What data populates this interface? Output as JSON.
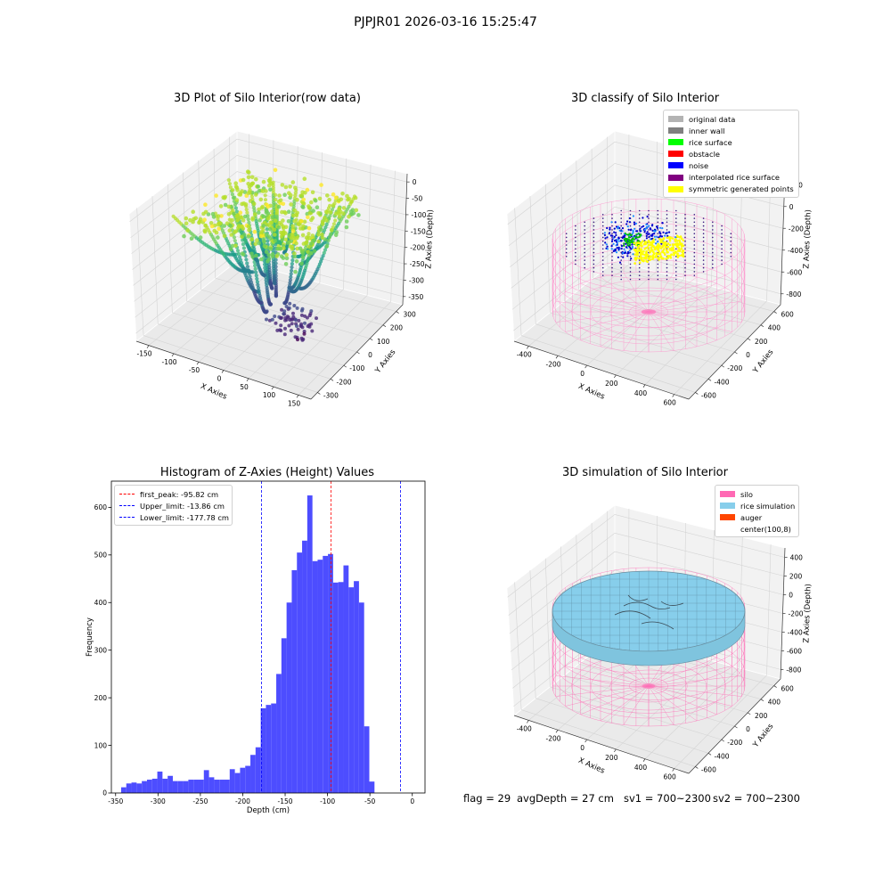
{
  "figure": {
    "suptitle": "PJPJR01 2026-03-16 15:25:47"
  },
  "panels": {
    "raw": {
      "title": "3D Plot of Silo Interior(row data)",
      "xlabel": "X Axies",
      "ylabel": "Y Axies",
      "zlabel": "Z Axies (Depth)",
      "xticks": [
        "-150",
        "-100",
        "-50",
        "0",
        "50",
        "100",
        "150"
      ],
      "yticks": [
        "-300",
        "-200",
        "-100",
        "0",
        "100",
        "200",
        "300"
      ],
      "zticks": [
        "0",
        "-50",
        "-100",
        "-150",
        "-200",
        "-250",
        "-300",
        "-350"
      ],
      "colormap": "viridis"
    },
    "classify": {
      "title": "3D classify of Silo Interior",
      "xlabel": "X Axies",
      "ylabel": "Y Axies",
      "zlabel": "Z Axies (Depth)",
      "xticks": [
        "-400",
        "-200",
        "0",
        "200",
        "400",
        "600"
      ],
      "yticks": [
        "-600",
        "-400",
        "-200",
        "0",
        "200",
        "400",
        "600"
      ],
      "zticks": [
        "200",
        "0",
        "-200",
        "-400",
        "-600",
        "-800"
      ],
      "legend": [
        {
          "label": "original data",
          "color": "#b3b3b3"
        },
        {
          "label": "inner wall",
          "color": "#808080"
        },
        {
          "label": "rice surface",
          "color": "#00ff00"
        },
        {
          "label": "obstacle",
          "color": "#ff0000"
        },
        {
          "label": "noise",
          "color": "#0000ff"
        },
        {
          "label": "interpolated rice surface",
          "color": "#800080"
        },
        {
          "label": "symmetric generated points",
          "color": "#ffff00"
        }
      ]
    },
    "simulation": {
      "title": "3D simulation of Silo Interior",
      "xlabel": "X Axies",
      "ylabel": "Y Axies",
      "zlabel": "Z Axies (Depth)",
      "xticks": [
        "-400",
        "-200",
        "0",
        "200",
        "400",
        "600"
      ],
      "yticks": [
        "-600",
        "-400",
        "-200",
        "0",
        "200",
        "400",
        "600"
      ],
      "zticks": [
        "400",
        "200",
        "0",
        "-200",
        "-400",
        "-600",
        "-800"
      ],
      "legend": [
        {
          "label": "silo",
          "color": "#ff69b4"
        },
        {
          "label": "rice simulation",
          "color": "#87ceeb"
        },
        {
          "label": "auger",
          "color": "#ff4500"
        },
        {
          "label": "center(100,8)",
          "color": "#ffffff"
        }
      ]
    }
  },
  "chart_data": {
    "type": "bar",
    "title": "Histogram of Z-Axies (Height) Values",
    "xlabel": "Depth (cm)",
    "ylabel": "Frequency",
    "xlim": [
      -355,
      15
    ],
    "ylim": [
      0,
      655
    ],
    "xticks": [
      -350,
      -300,
      -250,
      -200,
      -150,
      -100,
      -50,
      0
    ],
    "yticks": [
      0,
      100,
      200,
      300,
      400,
      500,
      600
    ],
    "bin_start": -343.5,
    "bin_width": 6.1,
    "values": [
      12,
      20,
      22,
      20,
      25,
      28,
      30,
      45,
      30,
      36,
      25,
      25,
      25,
      28,
      28,
      28,
      48,
      33,
      28,
      28,
      28,
      50,
      42,
      53,
      57,
      80,
      96,
      178,
      185,
      188,
      250,
      325,
      400,
      468,
      505,
      530,
      625,
      487,
      490,
      498,
      502,
      442,
      443,
      478,
      432,
      445,
      400,
      140,
      24
    ],
    "bar_color": "#4d4dff",
    "vlines": [
      {
        "label": "first_peak: -95.82 cm",
        "x": -95.82,
        "color": "#ff0000"
      },
      {
        "label": "Upper_limit: -13.86 cm",
        "x": -13.86,
        "color": "#0000ff"
      },
      {
        "label": "Lower_limit: -177.78 cm",
        "x": -177.78,
        "color": "#0000ff"
      }
    ],
    "legend_position": "upper-left",
    "grid": false
  },
  "status": {
    "flag": "flag = 29",
    "avg_depth": "avgDepth = 27 cm",
    "sv1": "sv1 = 700~2300",
    "sv2": "sv2 = 700~2300"
  }
}
